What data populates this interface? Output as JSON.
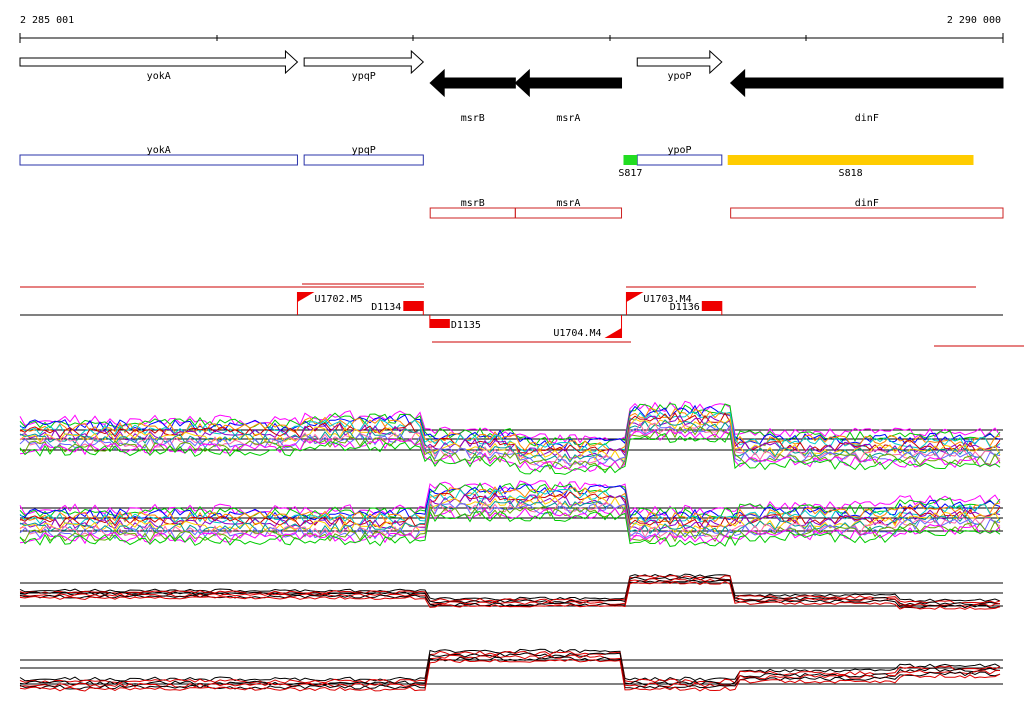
{
  "ruler": {
    "start_label": "2 285 001",
    "end_label": "2 290 000",
    "start": 2285001,
    "end": 2290000
  },
  "genes": [
    {
      "name": "yokA",
      "strand": "+",
      "start": 2285001,
      "end": 2286412
    },
    {
      "name": "ypqP",
      "strand": "+",
      "start": 2286446,
      "end": 2287052
    },
    {
      "name": "msrB",
      "strand": "-",
      "start": 2287087,
      "end": 2287520
    },
    {
      "name": "msrA",
      "strand": "-",
      "start": 2287520,
      "end": 2288060
    },
    {
      "name": "ypoP",
      "strand": "+",
      "start": 2288140,
      "end": 2288570
    },
    {
      "name": "dinF",
      "strand": "-",
      "start": 2288615,
      "end": 2290000
    }
  ],
  "transcripts": [
    {
      "name": "yokA",
      "start": 2285001,
      "end": 2286412,
      "color": "#2a33a8",
      "label": "yokA"
    },
    {
      "name": "ypqP",
      "start": 2286446,
      "end": 2287052,
      "color": "#2a33a8",
      "label": "ypqP"
    },
    {
      "name": "ypoP",
      "start": 2288140,
      "end": 2288570,
      "color": "#2a33a8",
      "label": "ypoP"
    },
    {
      "name": "msrB",
      "start": 2287087,
      "end": 2287520,
      "color": "#cc2222",
      "label": "msrB"
    },
    {
      "name": "msrA",
      "start": 2287520,
      "end": 2288060,
      "color": "#cc2222",
      "label": "msrA"
    },
    {
      "name": "dinF",
      "start": 2288615,
      "end": 2290000,
      "color": "#cc2222",
      "label": "dinF"
    }
  ],
  "segments": [
    {
      "name": "S817",
      "start": 2288070,
      "end": 2288140,
      "color": "#22dd22"
    },
    {
      "name": "S818",
      "start": 2288600,
      "end": 2289850,
      "color": "#ffcc00"
    }
  ],
  "upshifts": [
    {
      "name": "U1702.M5",
      "pos": 2286412,
      "strand": "+"
    },
    {
      "name": "U1703.M4",
      "pos": 2288085,
      "strand": "+"
    },
    {
      "name": "U1704.M4",
      "pos": 2288060,
      "strand": "-"
    }
  ],
  "downshifts": [
    {
      "name": "D1134",
      "pos": 2287052,
      "strand": "+"
    },
    {
      "name": "D1135",
      "pos": 2287187,
      "strand": "-"
    },
    {
      "name": "D1136",
      "pos": 2288570,
      "strand": "+"
    }
  ],
  "colors": {
    "gene_fill_minus": "#000000",
    "gene_fill_plus": "#ffffff",
    "transcript_plus": "#2a33a8",
    "transcript_minus": "#cc2222",
    "shift_marker": "#ee0000",
    "highlight_line": "#cc0000",
    "palette": [
      "#ff00ff",
      "#00cc00",
      "#0000ff",
      "#ff8800",
      "#00cccc",
      "#cc0000",
      "#8800cc",
      "#ffcc00",
      "#009999",
      "#ff66aa",
      "#6666ff",
      "#66aa00"
    ]
  }
}
